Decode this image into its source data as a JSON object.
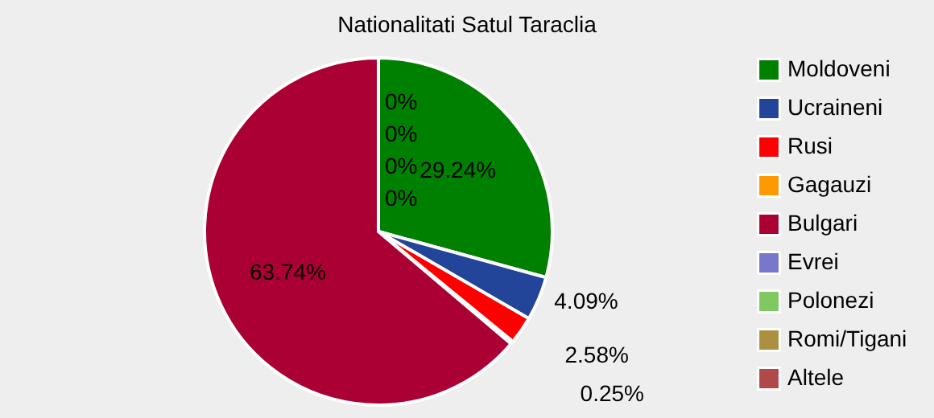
{
  "chart_data": {
    "type": "pie",
    "title": "Nationalitati Satul Taraclia",
    "categories": [
      "Moldoveni",
      "Ucraineni",
      "Rusi",
      "Gagauzi",
      "Bulgari",
      "Evrei",
      "Polonezi",
      "Romi/Tigani",
      "Altele"
    ],
    "values": [
      29.24,
      4.09,
      2.58,
      0.25,
      63.74,
      0,
      0,
      0,
      0
    ],
    "colors": [
      "#008000",
      "#224499",
      "#ff0000",
      "#ff9900",
      "#aa0033",
      "#7777cc",
      "#80c860",
      "#aa9040",
      "#b04a4a"
    ],
    "value_labels": [
      "29.24%",
      "4.09%",
      "2.58%",
      "0.25%",
      "63.74%",
      "0%",
      "0%",
      "0%",
      "0%"
    ],
    "legend": "right"
  }
}
